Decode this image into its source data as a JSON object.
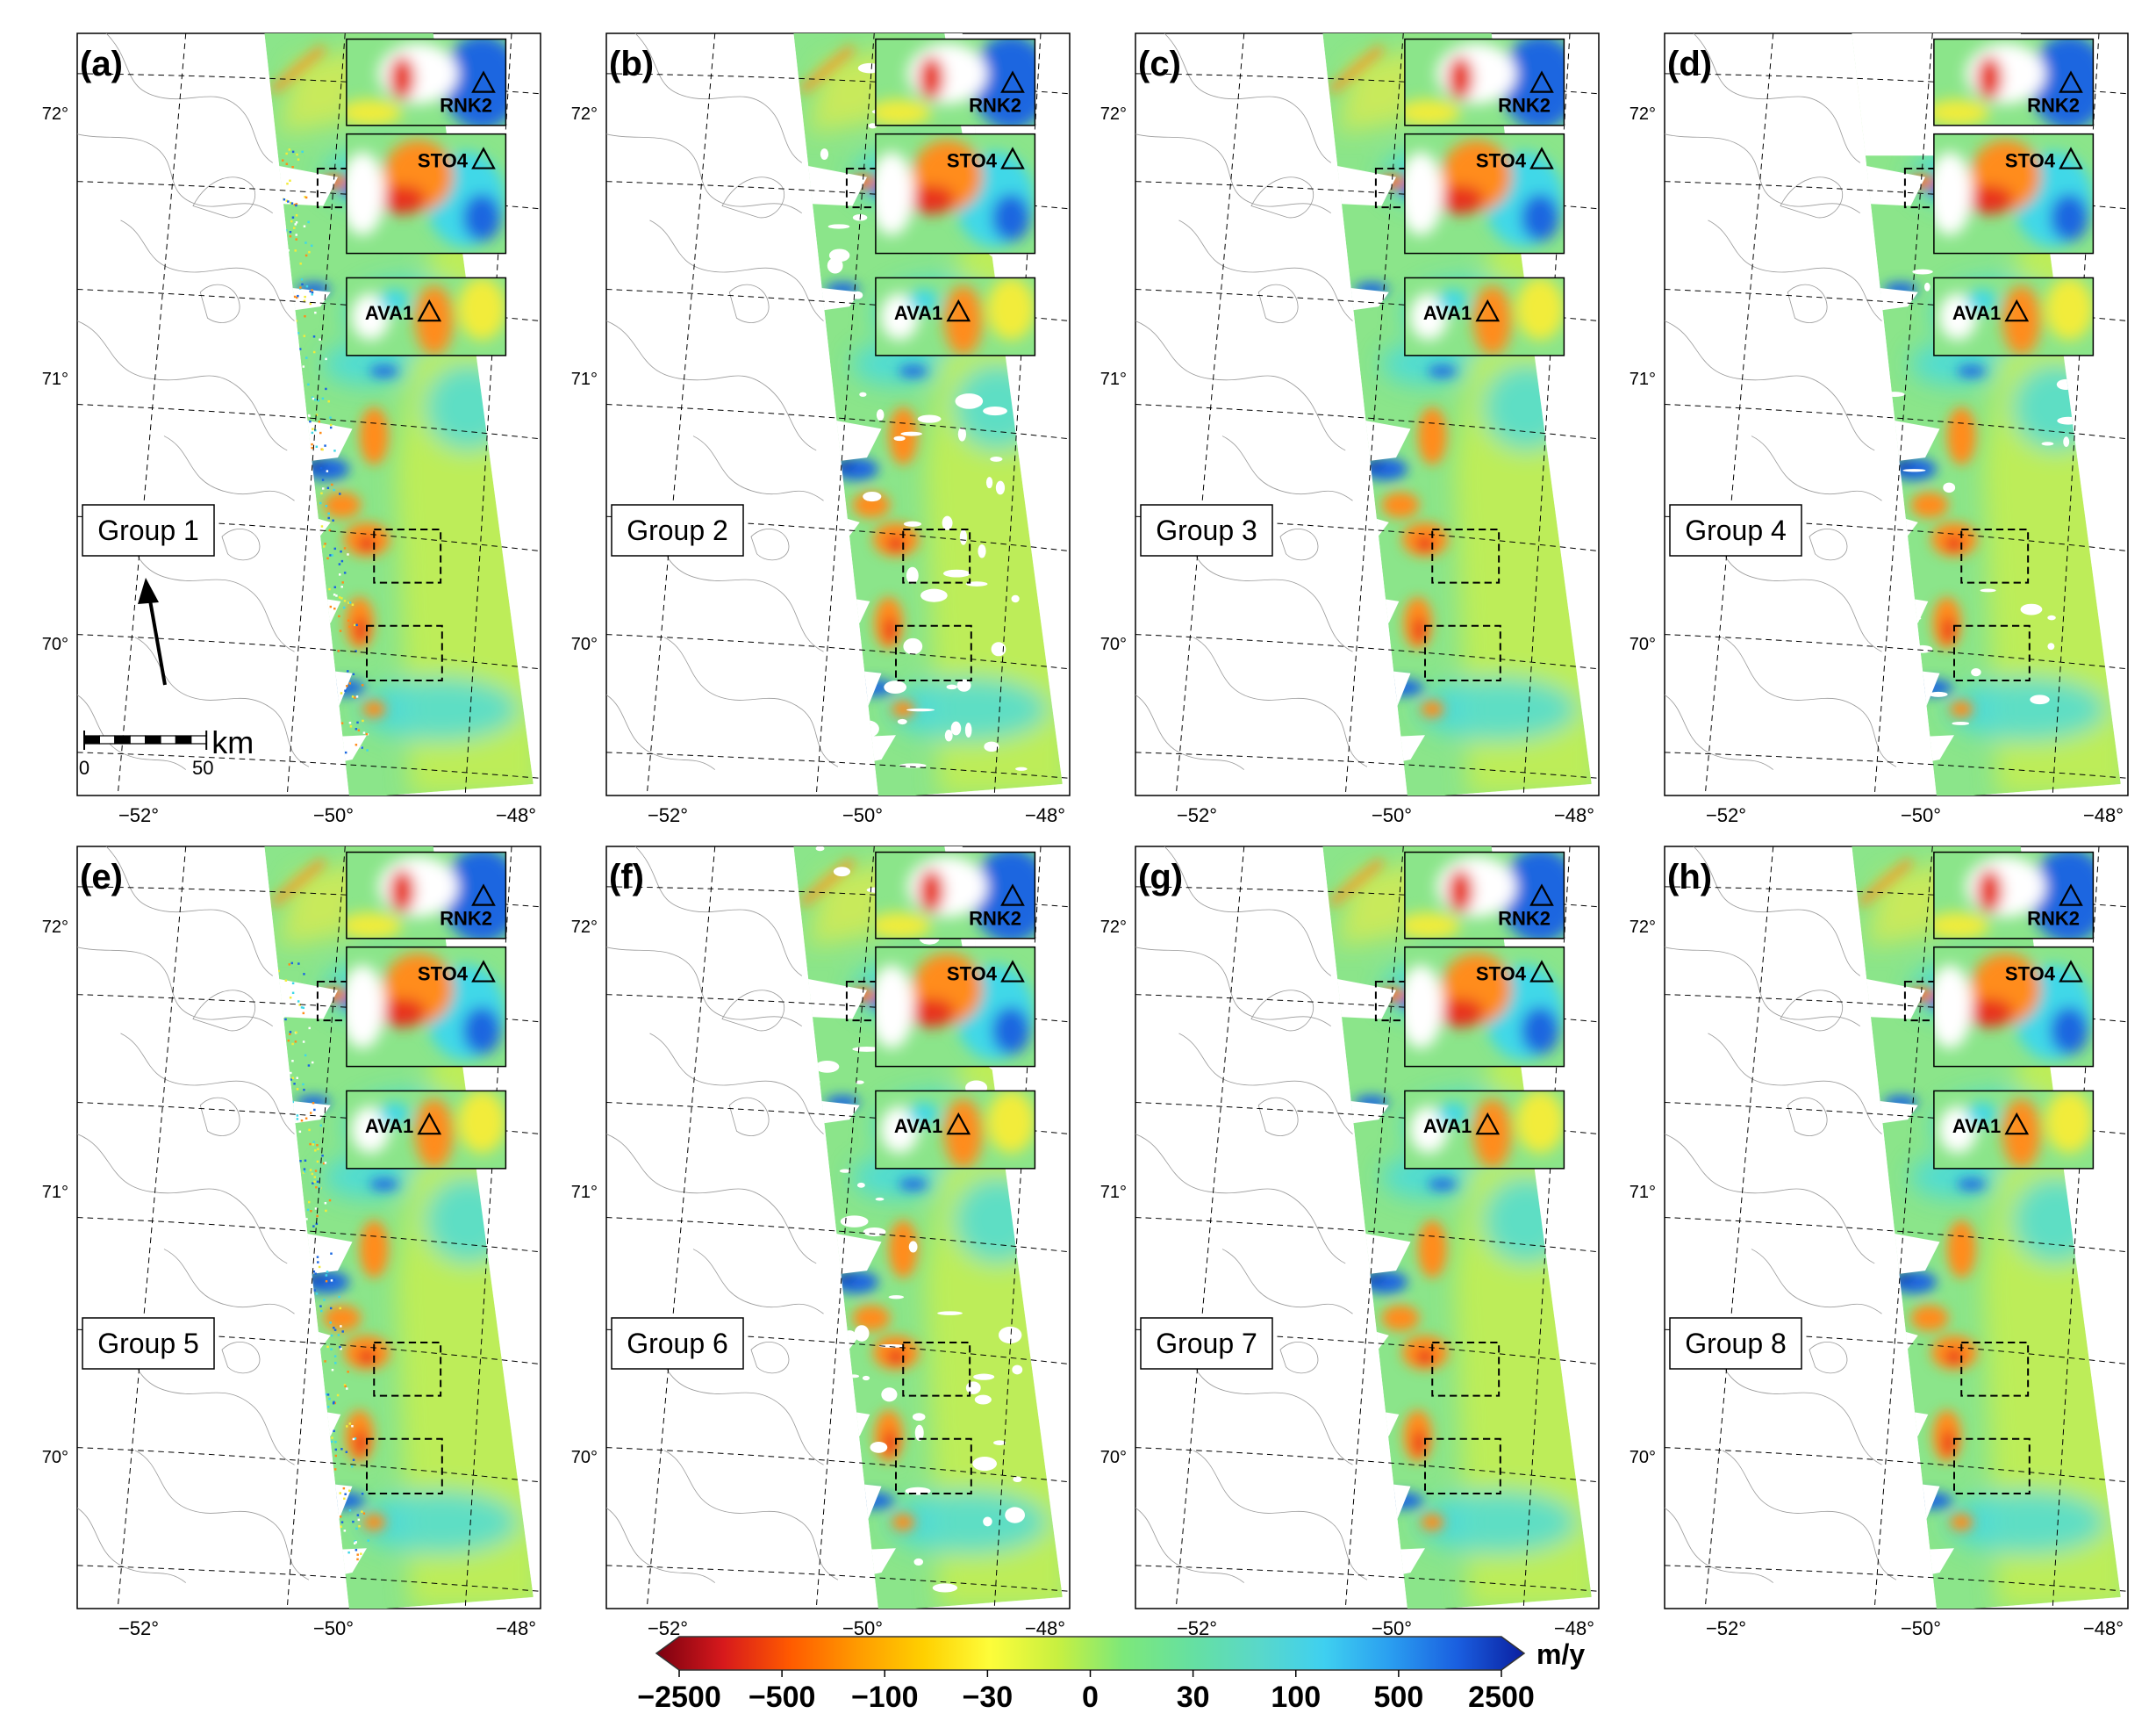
{
  "figure": {
    "panels": [
      {
        "letter": "(a)",
        "group": "Group 1",
        "coverage": "full",
        "edge": "noisy"
      },
      {
        "letter": "(b)",
        "group": "Group 2",
        "coverage": "patchy",
        "edge": "clean"
      },
      {
        "letter": "(c)",
        "group": "Group 3",
        "coverage": "full",
        "edge": "clean"
      },
      {
        "letter": "(d)",
        "group": "Group 4",
        "coverage": "cut",
        "edge": "clean"
      },
      {
        "letter": "(e)",
        "group": "Group 5",
        "coverage": "full",
        "edge": "noisy"
      },
      {
        "letter": "(f)",
        "group": "Group 6",
        "coverage": "patchy",
        "edge": "clean"
      },
      {
        "letter": "(g)",
        "group": "Group 7",
        "coverage": "full",
        "edge": "clean"
      },
      {
        "letter": "(h)",
        "group": "Group 8",
        "coverage": "full",
        "edge": "clean"
      }
    ],
    "insets": [
      "RNK2",
      "STO4",
      "AVA1"
    ],
    "lat_labels": [
      "72°",
      "71°",
      "70°"
    ],
    "lon_labels": [
      "−52°",
      "−50°",
      "−48°"
    ],
    "scale_bar": {
      "unit": "km",
      "ticks": [
        "0",
        "50"
      ]
    },
    "colorbar": {
      "unit": "m/y",
      "ticks": [
        "−2500",
        "−500",
        "−100",
        "−30",
        "0",
        "30",
        "100",
        "500",
        "2500"
      ],
      "colors": [
        "#7a0010",
        "#d7191c",
        "#ff5a00",
        "#ff9a00",
        "#ffd000",
        "#fdfd3a",
        "#c8f040",
        "#7de87a",
        "#66e0a0",
        "#5ad8c8",
        "#3fd0f0",
        "#2a9ef0",
        "#1a5fe0",
        "#0a1fa0"
      ]
    },
    "map_colors": {
      "base": "#8be58a",
      "yellow": "#f2ec3a",
      "orange": "#ff8c1a",
      "red": "#e8301a",
      "cyan": "#3fd8e8",
      "blue": "#1a66e0",
      "darkblue": "#0a2a9a",
      "coast": "#9a9a9a"
    }
  }
}
